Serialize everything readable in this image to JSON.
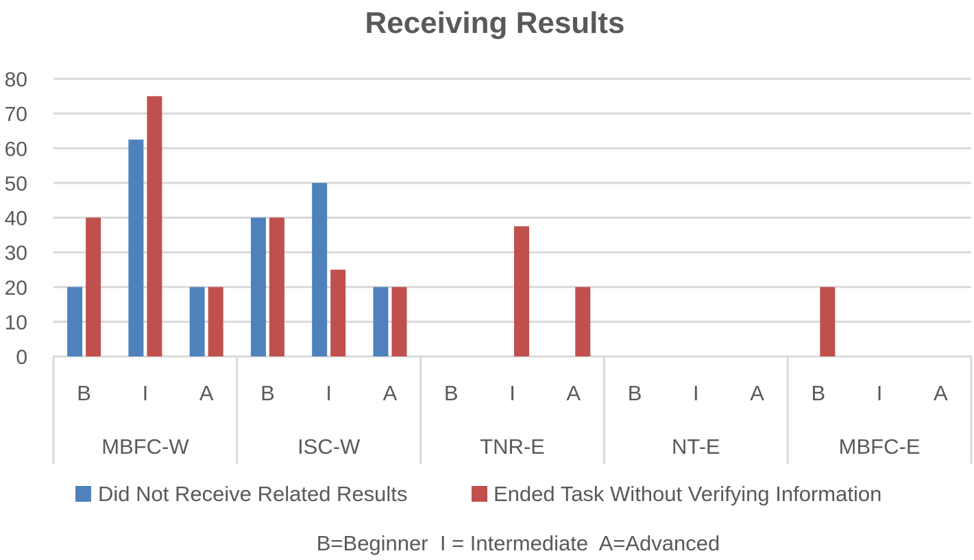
{
  "chart_data": {
    "type": "bar",
    "title": "Receiving Results",
    "groups": [
      {
        "label": "MBFC-W",
        "levels": [
          "B",
          "I",
          "A"
        ]
      },
      {
        "label": "ISC-W",
        "levels": [
          "B",
          "I",
          "A"
        ]
      },
      {
        "label": "TNR-E",
        "levels": [
          "B",
          "I",
          "A"
        ]
      },
      {
        "label": "NT-E",
        "levels": [
          "B",
          "I",
          "A"
        ]
      },
      {
        "label": "MBFC-E",
        "levels": [
          "B",
          "I",
          "A"
        ]
      }
    ],
    "series": [
      {
        "name": "Did Not Receive Related Results",
        "color": "#4f81bd",
        "values": [
          20,
          62.5,
          20,
          40,
          50,
          20,
          0,
          0,
          0,
          0,
          0,
          0,
          0,
          0,
          0
        ]
      },
      {
        "name": "Ended Task Without Verifying Information",
        "color": "#c0504d",
        "values": [
          40,
          75,
          20,
          40,
          25,
          20,
          0,
          37.5,
          20,
          0,
          0,
          0,
          20,
          0,
          0
        ]
      }
    ],
    "ylim": [
      0,
      80
    ],
    "yticks": [
      0,
      10,
      20,
      30,
      40,
      50,
      60,
      70,
      80
    ],
    "grid": true,
    "legend_position": "bottom",
    "note": "B=Beginner  I = Intermediate  A=Advanced"
  }
}
